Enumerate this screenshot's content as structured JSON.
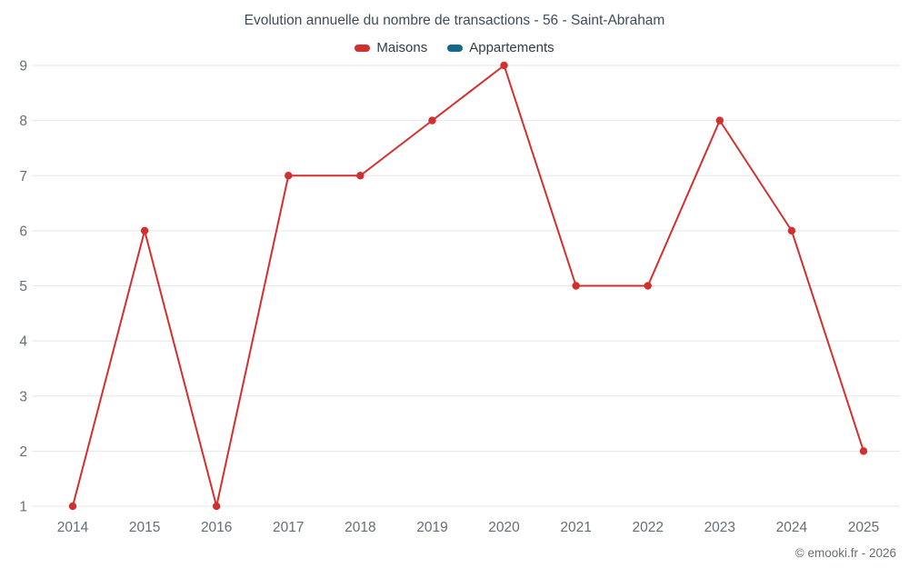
{
  "chart": {
    "title": "Evolution annuelle du nombre de transactions - 56 - Saint-Abraham",
    "attribution": "© emooki.fr - 2026"
  },
  "chart_data": {
    "type": "line",
    "title": "Evolution annuelle du nombre de transactions - 56 - Saint-Abraham",
    "categories": [
      "2014",
      "2015",
      "2016",
      "2017",
      "2018",
      "2019",
      "2020",
      "2021",
      "2022",
      "2023",
      "2024",
      "2025"
    ],
    "series": [
      {
        "name": "Maisons",
        "color": "#d32f2f",
        "values": [
          1,
          6,
          1,
          7,
          7,
          8,
          9,
          5,
          5,
          8,
          6,
          2
        ]
      },
      {
        "name": "Appartements",
        "color": "#16688a",
        "values": []
      }
    ],
    "xlabel": "",
    "ylabel": "",
    "ylim": [
      1,
      9
    ],
    "y_ticks": [
      1,
      2,
      3,
      4,
      5,
      6,
      7,
      8,
      9
    ],
    "grid": "horizontal",
    "legend_position": "top",
    "grid_color": "#e6e6e6",
    "tick_label_color": "#666e75"
  }
}
